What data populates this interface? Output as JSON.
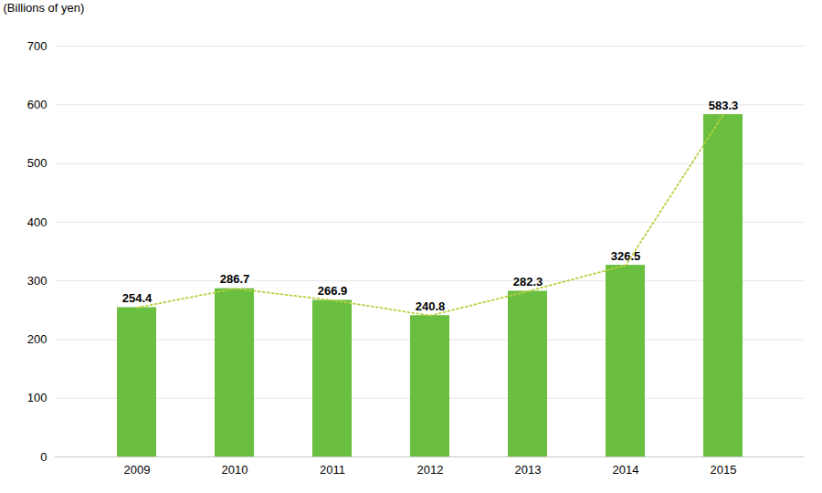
{
  "chart_data": {
    "type": "bar",
    "ylabel": "(Billions of yen)",
    "categories": [
      "2009",
      "2010",
      "2011",
      "2012",
      "2013",
      "2014",
      "2015"
    ],
    "series": [
      {
        "type": "bar",
        "color": "#6abf40",
        "values": [
          254.4,
          286.7,
          266.9,
          240.8,
          282.3,
          326.5,
          583.3
        ]
      },
      {
        "type": "line",
        "color": "#b8d040",
        "line_style": "dotted",
        "values": [
          254.4,
          286.7,
          266.9,
          240.8,
          282.3,
          326.5,
          583.3
        ]
      }
    ],
    "ylim": [
      0,
      700
    ],
    "yticks": [
      0,
      100,
      200,
      300,
      400,
      500,
      600,
      700
    ],
    "grid": true,
    "data_labels": true
  }
}
